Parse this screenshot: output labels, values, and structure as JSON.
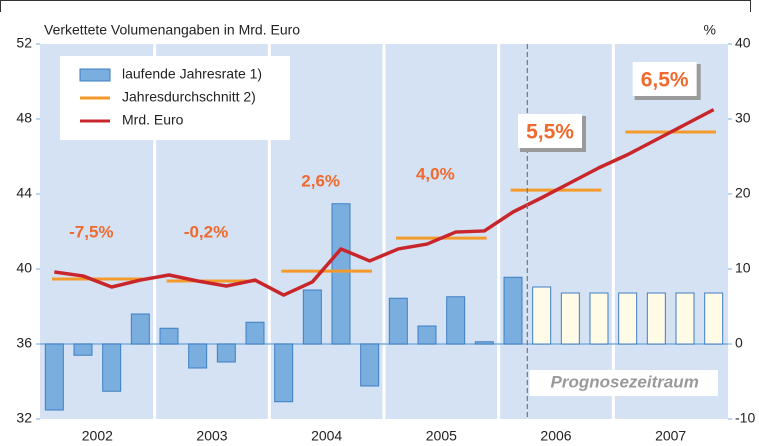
{
  "chart_data": {
    "type": "bar_line",
    "title": "Verkettete Volumenangaben in Mrd. Euro",
    "y2_label": "%",
    "ylim": [
      32,
      52
    ],
    "yticks": [
      32,
      36,
      40,
      44,
      48,
      52
    ],
    "y2lim": [
      -10,
      40
    ],
    "y2ticks": [
      -10,
      0,
      10,
      20,
      30,
      40
    ],
    "years": [
      "2002",
      "2003",
      "2004",
      "2005",
      "2006",
      "2007"
    ],
    "series": [
      {
        "name": "laufende Jahresrate 1)",
        "type": "bar",
        "axis": "y2",
        "color": "#7aaedf",
        "colors": [
          "#7aaedf",
          "#7aaedf",
          "#7aaedf",
          "#7aaedf",
          "#7aaedf",
          "#7aaedf",
          "#7aaedf",
          "#7aaedf",
          "#7aaedf",
          "#7aaedf",
          "#7aaedf",
          "#7aaedf",
          "#7aaedf",
          "#7aaedf",
          "#7aaedf",
          "#7aaedf",
          "#7aaedf",
          "#fffbe6",
          "#fffbe6",
          "#fffbe6",
          "#fffbe6",
          "#fffbe6",
          "#fffbe6",
          "#fffbe6"
        ],
        "values": [
          -8.8,
          -1.5,
          -6.3,
          4.0,
          2.1,
          -3.2,
          -2.4,
          2.9,
          -7.7,
          7.2,
          18.7,
          -5.6,
          6.1,
          2.4,
          6.3,
          0.3,
          8.9,
          7.6,
          6.8,
          6.8,
          6.8,
          6.8,
          6.8,
          6.8
        ]
      },
      {
        "name": "Jahresdurchschnitt 2)",
        "type": "step",
        "color": "#f39a2b",
        "values": [
          39.47,
          39.36,
          39.89,
          41.65,
          44.21,
          47.31
        ]
      },
      {
        "name": "Mrd. Euro",
        "type": "line",
        "color": "#c8262b",
        "values": [
          39.84,
          39.63,
          39.04,
          39.41,
          39.68,
          39.36,
          39.09,
          39.41,
          38.61,
          39.31,
          41.07,
          40.43,
          41.07,
          41.33,
          41.97,
          42.03,
          43.04,
          43.8,
          44.6,
          45.4,
          46.1,
          46.9,
          47.7,
          48.5
        ]
      }
    ],
    "annual_growth": {
      "color": "#ef6a2e",
      "values": [
        -7.5,
        -0.2,
        2.6,
        4.0,
        5.5,
        6.5
      ],
      "value_labels": [
        "-7,5%",
        "-0,2%",
        "2,6%",
        "4,0%",
        "5,5%",
        "6,5%"
      ]
    },
    "forecast_label": "Prognosezeitraum"
  }
}
